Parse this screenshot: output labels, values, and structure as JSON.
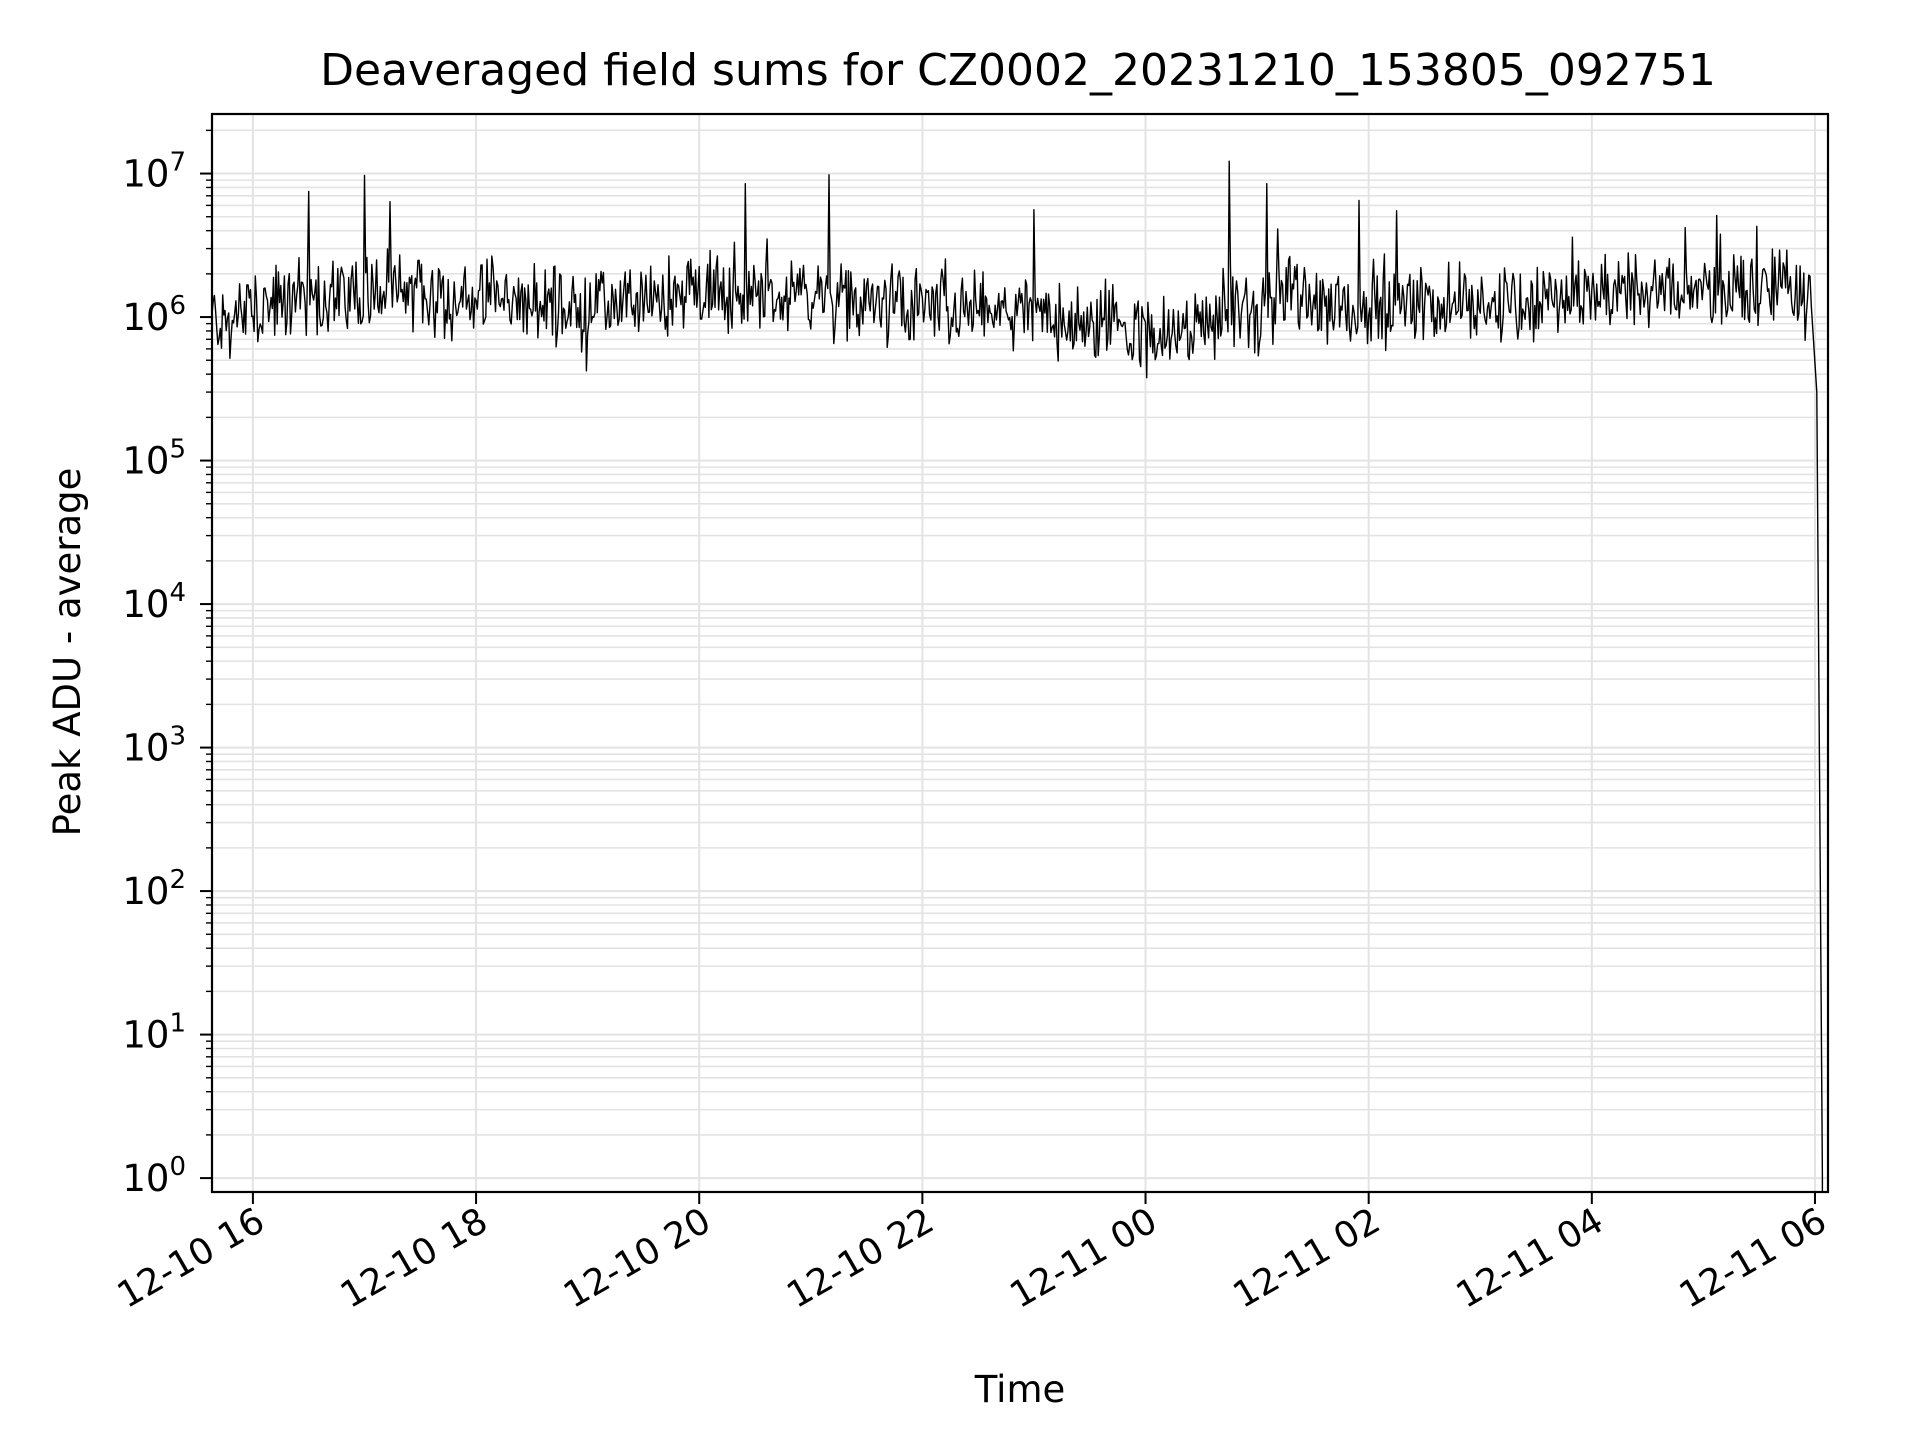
{
  "chart_data": {
    "type": "line",
    "title": "Deaveraged field sums for CZ0002_20231210_153805_092751",
    "xlabel": "Time",
    "ylabel": "Peak ADU - average",
    "yscale": "log",
    "grid": "major and minor",
    "x_axis": {
      "start": "2023-12-10 15:38",
      "end": "2023-12-11 06:07"
    },
    "xlim": [
      "2023-12-10 15:38",
      "2023-12-11 06:07"
    ],
    "ylim": [
      0.8,
      26000000.0
    ],
    "x_ticks": [
      "12-10 16",
      "12-10 18",
      "12-10 20",
      "12-10 22",
      "12-11 00",
      "12-11 02",
      "12-11 04",
      "12-11 06"
    ],
    "y_ticks": [
      {
        "base": "10",
        "exp": "0"
      },
      {
        "base": "10",
        "exp": "1"
      },
      {
        "base": "10",
        "exp": "2"
      },
      {
        "base": "10",
        "exp": "3"
      },
      {
        "base": "10",
        "exp": "4"
      },
      {
        "base": "10",
        "exp": "5"
      },
      {
        "base": "10",
        "exp": "6"
      },
      {
        "base": "10",
        "exp": "7"
      }
    ],
    "series": [
      {
        "color": "#000000",
        "x": [
          "2023-12-10 15:38",
          "2023-12-10 15:45",
          "2023-12-10 16:00",
          "2023-12-10 16:15",
          "2023-12-10 16:30",
          "2023-12-10 16:45",
          "2023-12-10 17:00",
          "2023-12-10 17:15",
          "2023-12-10 17:30",
          "2023-12-10 17:45",
          "2023-12-10 18:00",
          "2023-12-10 18:30",
          "2023-12-10 19:00",
          "2023-12-10 19:30",
          "2023-12-10 20:00",
          "2023-12-10 20:30",
          "2023-12-10 21:00",
          "2023-12-10 21:30",
          "2023-12-10 22:00",
          "2023-12-10 22:30",
          "2023-12-10 23:00",
          "2023-12-10 23:30",
          "2023-12-11 00:00",
          "2023-12-11 00:30",
          "2023-12-11 00:45",
          "2023-12-11 01:00",
          "2023-12-11 01:15",
          "2023-12-11 01:30",
          "2023-12-11 02:00",
          "2023-12-11 02:30",
          "2023-12-11 03:00",
          "2023-12-11 03:30",
          "2023-12-11 04:00",
          "2023-12-11 04:30",
          "2023-12-11 05:00",
          "2023-12-11 05:30",
          "2023-12-11 05:50",
          "2023-12-11 05:58",
          "2023-12-11 06:01",
          "2023-12-11 06:03",
          "2023-12-11 06:04"
        ],
        "values": [
          1000000,
          900000,
          1100000,
          1200000,
          1500000,
          1400000,
          1600000,
          1500000,
          1400000,
          1300000,
          1400000,
          1200000,
          1100000,
          1300000,
          1500000,
          1300000,
          1400000,
          1200000,
          1200000,
          1100000,
          1000000,
          900000,
          700000,
          800000,
          1200000,
          900000,
          1600000,
          1300000,
          1100000,
          1300000,
          1300000,
          1200000,
          1400000,
          1500000,
          1500000,
          1600000,
          1700000,
          1200000,
          300000,
          60,
          1
        ]
      }
    ],
    "spikes": [
      {
        "x": "2023-12-10 16:30",
        "y": 7500000
      },
      {
        "x": "2023-12-10 17:00",
        "y": 9700000
      },
      {
        "x": "2023-12-10 20:25",
        "y": 8500000
      },
      {
        "x": "2023-12-10 21:10",
        "y": 9800000
      },
      {
        "x": "2023-12-10 23:00",
        "y": 5600000
      },
      {
        "x": "2023-12-11 00:45",
        "y": 12200000
      },
      {
        "x": "2023-12-11 01:05",
        "y": 8500000
      },
      {
        "x": "2023-12-11 01:55",
        "y": 6500000
      },
      {
        "x": "2023-12-11 02:15",
        "y": 5500000
      },
      {
        "x": "2023-12-11 04:50",
        "y": 4200000
      }
    ]
  }
}
